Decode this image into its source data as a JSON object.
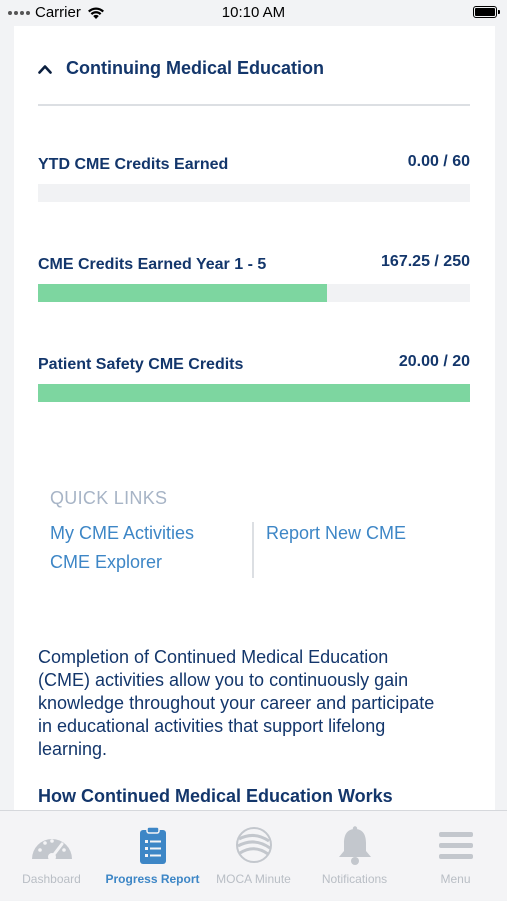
{
  "status_bar": {
    "carrier": "Carrier",
    "time": "10:10 AM"
  },
  "section": {
    "title": "Continuing Medical Education"
  },
  "credits": [
    {
      "label": "YTD CME Credits Earned",
      "value": "0.00 / 60",
      "progress": 0.0
    },
    {
      "label": "CME Credits Earned Year 1 - 5",
      "value": "167.25 / 250",
      "progress": 0.669
    },
    {
      "label": "Patient Safety CME Credits",
      "value": "20.00 / 20",
      "progress": 1.0
    }
  ],
  "quick_links": {
    "title": "QUICK LINKS",
    "my_activities": "My CME Activities",
    "explorer": "CME Explorer",
    "report_new": "Report New CME"
  },
  "description": "Completion of Continued Medical Education (CME) activities allow you to continuously gain knowledge throughout your career and participate in educational activities that support lifelong learning.",
  "subheading": "How Continued Medical Education Works",
  "tabs": [
    {
      "label": "Dashboard",
      "icon": "dashboard-gauge-icon",
      "active": false
    },
    {
      "label": "Progress Report",
      "icon": "clipboard-list-icon",
      "active": true
    },
    {
      "label": "MOCA Minute",
      "icon": "moca-swirl-icon",
      "active": false
    },
    {
      "label": "Notifications",
      "icon": "bell-icon",
      "active": false
    },
    {
      "label": "Menu",
      "icon": "hamburger-menu-icon",
      "active": false
    }
  ],
  "colors": {
    "primary_text": "#13366b",
    "link": "#3d86c6",
    "progress_fill": "#7dd6a0",
    "progress_track": "#f1f2f4",
    "inactive_tab": "#b9bec5"
  }
}
